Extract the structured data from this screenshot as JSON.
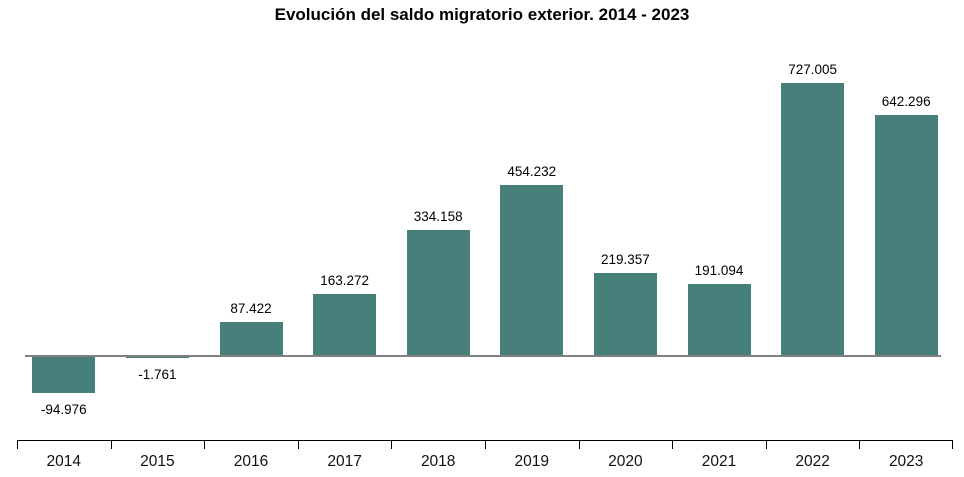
{
  "title": "Evolución del saldo migratorio exterior. 2014 - 2023",
  "colors": {
    "bar": "#47807A",
    "zero_line": "#808080",
    "axis": "#000000",
    "text": "#000000"
  },
  "chart_data": {
    "type": "bar",
    "title": "Evolución del saldo migratorio exterior. 2014 - 2023",
    "categories": [
      "2014",
      "2015",
      "2016",
      "2017",
      "2018",
      "2019",
      "2020",
      "2021",
      "2022",
      "2023"
    ],
    "values": [
      -94976,
      -1761,
      87422,
      163272,
      334158,
      454232,
      219357,
      191094,
      727005,
      642296
    ],
    "value_labels": [
      "-94.976",
      "-1.761",
      "87.422",
      "163.272",
      "334.158",
      "454.232",
      "219.357",
      "191.094",
      "727.005",
      "642.296"
    ],
    "xlabel": "",
    "ylabel": "",
    "ylim": [
      -100000,
      750000
    ],
    "grid": false,
    "legend": null,
    "bar_color": "#47807A"
  }
}
